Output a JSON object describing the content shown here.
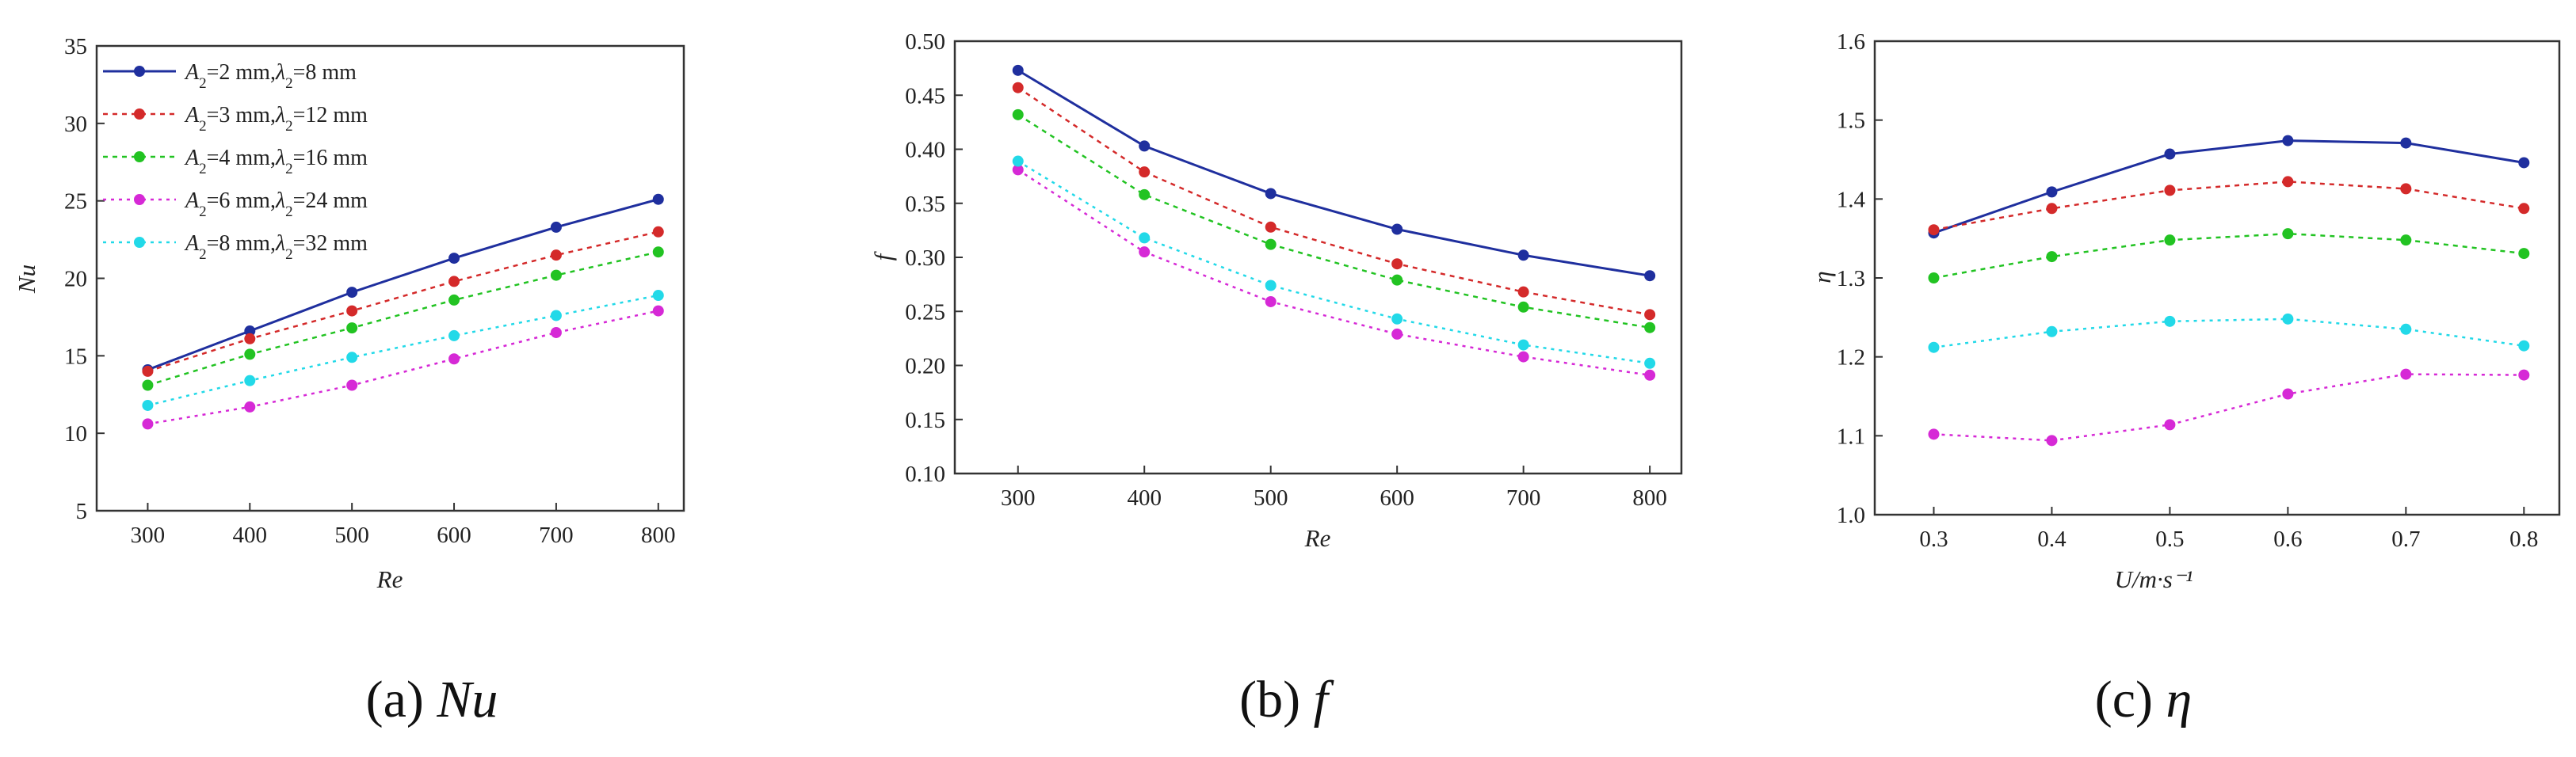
{
  "colors": {
    "s1": "#1f2f9e",
    "s2": "#d42a2a",
    "s3": "#22c322",
    "s4": "#d629d6",
    "s5": "#22d9e8"
  },
  "legend": {
    "entries": [
      {
        "A": "A",
        "sub1": "2",
        "mid": "=2 mm,",
        "L": "λ",
        "sub2": "2",
        "end": "=8 mm"
      },
      {
        "A": "A",
        "sub1": "2",
        "mid": "=3 mm,",
        "L": "λ",
        "sub2": "2",
        "end": "=12 mm"
      },
      {
        "A": "A",
        "sub1": "2",
        "mid": "=4 mm,",
        "L": "λ",
        "sub2": "2",
        "end": "=16 mm"
      },
      {
        "A": "A",
        "sub1": "2",
        "mid": "=6 mm,",
        "L": "λ",
        "sub2": "2",
        "end": "=24 mm"
      },
      {
        "A": "A",
        "sub1": "2",
        "mid": "=8 mm,",
        "L": "λ",
        "sub2": "2",
        "end": "=32 mm"
      }
    ]
  },
  "captions": {
    "a": {
      "prefix": "(a) ",
      "symbol": "Nu"
    },
    "b": {
      "prefix": "(b) ",
      "symbol": "f"
    },
    "c": {
      "prefix": "(c) ",
      "symbol": "η"
    }
  },
  "chart_data": [
    {
      "type": "line",
      "xlabel": "Re",
      "ylabel": "Nu",
      "xlim": [
        250,
        825
      ],
      "ylim": [
        5,
        35
      ],
      "xticks": [
        300,
        400,
        500,
        600,
        700,
        800
      ],
      "yticks": [
        5,
        10,
        15,
        20,
        25,
        30,
        35
      ],
      "x": [
        300,
        400,
        500,
        600,
        700,
        800
      ],
      "legend_position": "top-left",
      "series": [
        {
          "name": "A2=2 mm,λ2=8 mm",
          "values": [
            14.1,
            16.6,
            19.1,
            21.3,
            23.3,
            25.1
          ]
        },
        {
          "name": "A2=3 mm,λ2=12 mm",
          "values": [
            14.0,
            16.1,
            17.9,
            19.8,
            21.5,
            23.0
          ]
        },
        {
          "name": "A2=4 mm,λ2=16 mm",
          "values": [
            13.1,
            15.1,
            16.8,
            18.6,
            20.2,
            21.7
          ]
        },
        {
          "name": "A2=6 mm,λ2=24 mm",
          "values": [
            10.6,
            11.7,
            13.1,
            14.8,
            16.5,
            17.9
          ]
        },
        {
          "name": "A2=8 mm,λ2=32 mm",
          "values": [
            11.8,
            13.4,
            14.9,
            16.3,
            17.6,
            18.9
          ]
        }
      ]
    },
    {
      "type": "line",
      "xlabel": "Re",
      "ylabel": "f",
      "xlim": [
        250,
        825
      ],
      "ylim": [
        0.1,
        0.5
      ],
      "xticks": [
        300,
        400,
        500,
        600,
        700,
        800
      ],
      "yticks": [
        "0.10",
        "0.15",
        "0.20",
        "0.25",
        "0.30",
        "0.35",
        "0.40",
        "0.45",
        "0.50"
      ],
      "x": [
        300,
        400,
        500,
        600,
        700,
        800
      ],
      "series": [
        {
          "name": "A2=2 mm,λ2=8 mm",
          "values": [
            0.473,
            0.403,
            0.359,
            0.326,
            0.302,
            0.283
          ]
        },
        {
          "name": "A2=3 mm,λ2=12 mm",
          "values": [
            0.457,
            0.379,
            0.328,
            0.294,
            0.268,
            0.247
          ]
        },
        {
          "name": "A2=4 mm,λ2=16 mm",
          "values": [
            0.432,
            0.358,
            0.312,
            0.279,
            0.254,
            0.235
          ]
        },
        {
          "name": "A2=6 mm,λ2=24 mm",
          "values": [
            0.381,
            0.305,
            0.259,
            0.229,
            0.208,
            0.191
          ]
        },
        {
          "name": "A2=8 mm,λ2=32 mm",
          "values": [
            0.389,
            0.318,
            0.274,
            0.243,
            0.219,
            0.202
          ]
        }
      ]
    },
    {
      "type": "line",
      "xlabel": "U/m·s⁻¹",
      "ylabel": "η",
      "xlim": [
        0.25,
        0.83
      ],
      "ylim": [
        1.0,
        1.6
      ],
      "xticks": [
        "0.3",
        "0.4",
        "0.5",
        "0.6",
        "0.7",
        "0.8"
      ],
      "yticks": [
        "1.0",
        "1.1",
        "1.2",
        "1.3",
        "1.4",
        "1.5",
        "1.6"
      ],
      "x": [
        0.3,
        0.4,
        0.5,
        0.6,
        0.7,
        0.8
      ],
      "series": [
        {
          "name": "A2=2 mm,λ2=8 mm",
          "values": [
            1.357,
            1.409,
            1.457,
            1.474,
            1.471,
            1.446
          ]
        },
        {
          "name": "A2=3 mm,λ2=12 mm",
          "values": [
            1.361,
            1.388,
            1.411,
            1.422,
            1.413,
            1.388
          ]
        },
        {
          "name": "A2=4 mm,λ2=16 mm",
          "values": [
            1.3,
            1.327,
            1.348,
            1.356,
            1.348,
            1.331
          ]
        },
        {
          "name": "A2=6 mm,λ2=24 mm",
          "values": [
            1.102,
            1.094,
            1.114,
            1.153,
            1.178,
            1.177
          ]
        },
        {
          "name": "A2=8 mm,λ2=32 mm",
          "values": [
            1.212,
            1.232,
            1.245,
            1.248,
            1.235,
            1.214
          ]
        }
      ]
    }
  ]
}
